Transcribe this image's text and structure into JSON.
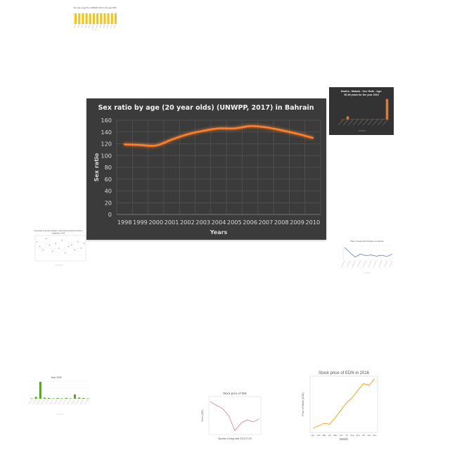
{
  "chart_data": [
    {
      "type": "line",
      "title": "Sex ratio by age (20 year olds) (UNWPP, 2017) in Bahrain",
      "xlabel": "Years",
      "ylabel": "Sex ratio",
      "x": [
        "1998",
        "1999",
        "2000",
        "2001",
        "2002",
        "2003",
        "2004",
        "2005",
        "2006",
        "2007",
        "2008",
        "2009",
        "2010"
      ],
      "series": [
        {
          "values": [
            119,
            118,
            117,
            127,
            136,
            142,
            146,
            146,
            150,
            148,
            143,
            137,
            130
          ]
        }
      ],
      "ylim": [
        0,
        160
      ],
      "yticks": [
        0,
        20,
        40,
        60,
        80,
        100,
        120,
        140,
        160
      ],
      "grid": true,
      "colors": {
        "line": "#ff7f2a",
        "background": "#3b3b3b",
        "grid": "#555555"
      }
    },
    {
      "type": "bar",
      "title": "Deaths - Malaria - Sex: Both - Age: 50-69 years for the year 2019",
      "xlabel": "Location",
      "values": [
        0,
        12,
        1,
        1,
        1,
        0,
        1,
        1,
        1,
        78
      ],
      "colors": {
        "bar": "#e8772e",
        "background": "#333333"
      }
    },
    {
      "type": "bar",
      "title": "Sex ratio at age five (UNWPP, 2017) in the year 2015",
      "values": [
        104,
        103,
        105,
        104,
        102,
        104,
        103,
        105,
        104,
        103,
        104,
        105
      ],
      "colors": {
        "bar": "#f0c419"
      }
    },
    {
      "type": "scatter",
      "title": "Percentage of people working in urban area among the chronic in registration, 2010",
      "xlabel": "Year of study",
      "values": [
        12,
        9,
        7,
        14,
        10,
        6,
        11,
        8,
        13,
        5,
        9,
        10,
        7,
        12,
        8,
        11
      ],
      "colors": {
        "point": "#999999"
      }
    },
    {
      "type": "line",
      "title": "Share of people with substance use disorder",
      "xlabel": "Country",
      "values": [
        5.2,
        3.1,
        1.2,
        2.5,
        1.8,
        2.1,
        1.6,
        2.0,
        1.5,
        2.4
      ],
      "colors": {
        "line": "#4a78c2"
      }
    },
    {
      "type": "bar",
      "title": "Year 2009",
      "xlabel": "Country",
      "values": [
        0.1,
        0.5,
        4.8,
        0.3,
        0.2,
        0.1,
        0.2,
        0.1,
        0.2,
        0.1,
        1.2,
        0.3,
        0.2,
        0.1
      ],
      "colors": {
        "bar": "#5aa02c"
      }
    },
    {
      "type": "line",
      "title": "Stock price of IDE",
      "xlabel": "Number of Days after 2019-07-09",
      "ylabel": "Price (USD)",
      "values": [
        121.2,
        120.6,
        120.1,
        119.0,
        116.6,
        117.8,
        118.3,
        118.0,
        118.5
      ],
      "colors": {
        "line": "#d96a7a"
      }
    },
    {
      "type": "line",
      "title": "Stock price of EDN in 2016",
      "xlabel": "Month",
      "ylabel": "Price of Stock (USD)",
      "x": [
        "Jan",
        "Feb",
        "Mar",
        "Apr",
        "May",
        "Jun",
        "Jul",
        "Aug",
        "Sep",
        "Oct",
        "Nov",
        "Dec"
      ],
      "values": [
        10.5,
        12.0,
        13.5,
        13.0,
        17.0,
        21.5,
        26.0,
        29.0,
        33.5,
        37.5,
        36.5,
        40.5
      ],
      "colors": {
        "line": "#f5a623"
      }
    }
  ]
}
